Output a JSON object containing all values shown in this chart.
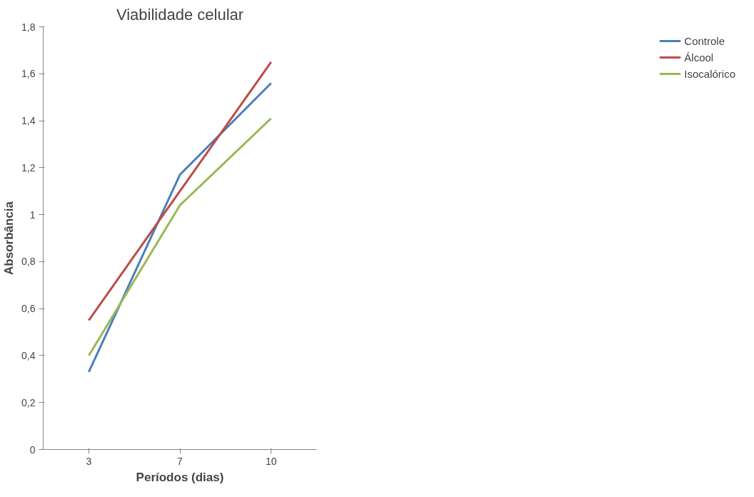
{
  "chart_data": {
    "type": "line",
    "title": "Viabilidade celular",
    "xlabel": "Períodos (dias)",
    "ylabel": "Absorbância",
    "categories": [
      "3",
      "7",
      "10"
    ],
    "series": [
      {
        "name": "Controle",
        "color": "#4a7ebb",
        "values": [
          0.33,
          1.17,
          1.56
        ]
      },
      {
        "name": "Álcool",
        "color": "#be4b48",
        "values": [
          0.55,
          1.1,
          1.65
        ]
      },
      {
        "name": "Isocalórico",
        "color": "#98b954",
        "values": [
          0.4,
          1.04,
          1.41
        ]
      }
    ],
    "ylim": [
      0,
      1.8
    ],
    "yticks": [
      {
        "value": 0,
        "label": "0"
      },
      {
        "value": 0.2,
        "label": "0,2"
      },
      {
        "value": 0.4,
        "label": "0,4"
      },
      {
        "value": 0.6,
        "label": "0,6"
      },
      {
        "value": 0.8,
        "label": "0,8"
      },
      {
        "value": 1,
        "label": "1"
      },
      {
        "value": 1.2,
        "label": "1,2"
      },
      {
        "value": 1.4,
        "label": "1,4"
      },
      {
        "value": 1.6,
        "label": "1,6"
      },
      {
        "value": 1.8,
        "label": "1,8"
      }
    ],
    "grid": false,
    "legend": "right",
    "marker": "none",
    "line_style": "solid"
  }
}
